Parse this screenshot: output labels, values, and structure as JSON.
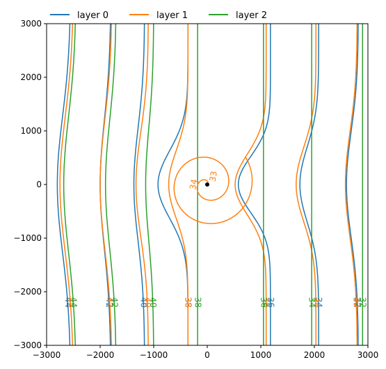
{
  "chart_data": {
    "type": "line",
    "title": "",
    "xlabel": "",
    "ylabel": "",
    "xlim": [
      -3000,
      3000
    ],
    "ylim": [
      -3000,
      3000
    ],
    "xticks": [
      -3000,
      -2000,
      -1000,
      0,
      1000,
      2000,
      3000
    ],
    "yticks": [
      -3000,
      -2000,
      -1000,
      0,
      1000,
      2000,
      3000
    ],
    "xtick_labels": [
      "−3000",
      "−2000",
      "−1000",
      "0",
      "1000",
      "2000",
      "3000"
    ],
    "ytick_labels": [
      "−3000",
      "−2000",
      "−1000",
      "0",
      "1000",
      "2000",
      "3000"
    ],
    "grid": false,
    "legend_position": "top, above plot",
    "well": {
      "x": 0,
      "y": 0
    },
    "series": [
      {
        "name": "layer 0",
        "color": "#1f77b4",
        "contours": [
          {
            "level": 44,
            "base_x": -2550,
            "shift": -250,
            "width": 1800
          },
          {
            "level": 42,
            "base_x": -1800,
            "shift": -200,
            "width": 1700
          },
          {
            "level": 40,
            "base_x": -1170,
            "shift": -200,
            "width": 1500
          },
          {
            "level": 38,
            "base_x": -360,
            "shift": -560,
            "width": 900
          },
          {
            "level": 36,
            "base_x": 1180,
            "shift": -600,
            "width": 750
          },
          {
            "level": 34,
            "base_x": 2080,
            "shift": -350,
            "width": 1000
          },
          {
            "level": 32,
            "base_x": 2820,
            "shift": -220,
            "width": 1400
          }
        ]
      },
      {
        "name": "layer 1",
        "color": "#ff7f0e",
        "contours": [
          {
            "level": 44,
            "base_x": -2500,
            "shift": -250,
            "width": 1800
          },
          {
            "level": 42,
            "base_x": -1780,
            "shift": -220,
            "width": 1700
          },
          {
            "level": 40,
            "base_x": -1100,
            "shift": -230,
            "width": 1400
          },
          {
            "level": 38,
            "base_x": -360,
            "shift": -360,
            "width": 900
          },
          {
            "level": 36,
            "base_x": 1100,
            "shift": -580,
            "width": 800
          },
          {
            "level": 34,
            "base_x": 2030,
            "shift": -370,
            "width": 1000
          },
          {
            "level": 32,
            "base_x": 2800,
            "shift": -220,
            "width": 1400
          }
        ],
        "spiral_labels": [
          "34",
          "33"
        ]
      },
      {
        "name": "layer 2",
        "color": "#2ca02c",
        "contours": [
          {
            "level": 44,
            "base_x": -2450,
            "shift": -230,
            "width": 1800
          },
          {
            "level": 42,
            "base_x": -1700,
            "shift": -200,
            "width": 1700
          },
          {
            "level": 40,
            "base_x": -1000,
            "shift": -150,
            "width": 1500
          },
          {
            "level": 38,
            "base_x": -180,
            "shift": 0,
            "width": 1000
          },
          {
            "level": 36,
            "base_x": 1050,
            "shift": 0,
            "width": 1000
          },
          {
            "level": 34,
            "base_x": 1950,
            "shift": 0,
            "width": 1000
          },
          {
            "level": 32,
            "base_x": 2900,
            "shift": 0,
            "width": 1000
          }
        ]
      }
    ]
  }
}
